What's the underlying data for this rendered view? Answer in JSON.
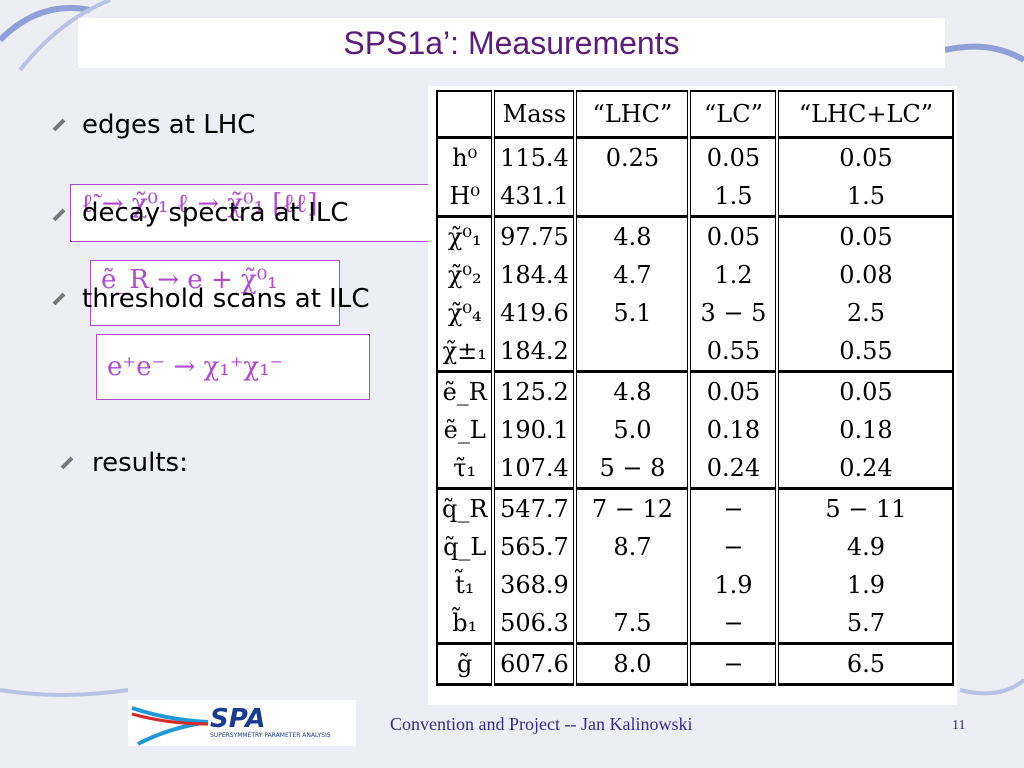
{
  "header": {
    "title": "SPS1a’: Measurements"
  },
  "bullets": [
    "edges at LHC",
    "decay spectra at ILC",
    "threshold scans at ILC",
    "results:"
  ],
  "formulas": [
    "ℓ̃ → χ̃⁰₁ ℓ → χ̃⁰₁ [ℓℓ]",
    "ẽ_R → e + χ̃⁰₁",
    "e⁺e⁻ → χ₁⁺χ₁⁻"
  ],
  "table": {
    "header": [
      "Mass",
      "“LHC”",
      "“LC”",
      "“LHC+LC”"
    ],
    "groups": [
      [
        [
          "h⁰",
          "115.4",
          "0.25",
          "0.05",
          "0.05"
        ],
        [
          "H⁰",
          "431.1",
          null,
          "1.5",
          "1.5"
        ]
      ],
      [
        [
          "χ̃⁰₁",
          "97.75",
          "4.8",
          "0.05",
          "0.05"
        ],
        [
          "χ̃⁰₂",
          "184.4",
          "4.7",
          "1.2",
          "0.08"
        ],
        [
          "χ̃⁰₄",
          "419.6",
          "5.1",
          "3 − 5",
          "2.5"
        ],
        [
          "χ̃±₁",
          "184.2",
          null,
          "0.55",
          "0.55"
        ]
      ],
      [
        [
          "ẽ_R",
          "125.2",
          "4.8",
          "0.05",
          "0.05"
        ],
        [
          "ẽ_L",
          "190.1",
          "5.0",
          "0.18",
          "0.18"
        ],
        [
          "τ̃₁",
          "107.4",
          "5 − 8",
          "0.24",
          "0.24"
        ]
      ],
      [
        [
          "q̃_R",
          "547.7",
          "7 − 12",
          "−",
          "5 − 11"
        ],
        [
          "q̃_L",
          "565.7",
          "8.7",
          "−",
          "4.9"
        ],
        [
          "t̃₁",
          "368.9",
          null,
          "1.9",
          "1.9"
        ],
        [
          "b̃₁",
          "506.3",
          "7.5",
          "−",
          "5.7"
        ]
      ],
      [
        [
          "g̃",
          "607.6",
          "8.0",
          "−",
          "6.5"
        ]
      ]
    ]
  },
  "footer": {
    "logo": "SPA",
    "logo_caption": "SUPERSYMMETRY PARAMETER ANALYSIS",
    "text": "Convention and Project -- Jan Kalinowski",
    "page": "11"
  }
}
